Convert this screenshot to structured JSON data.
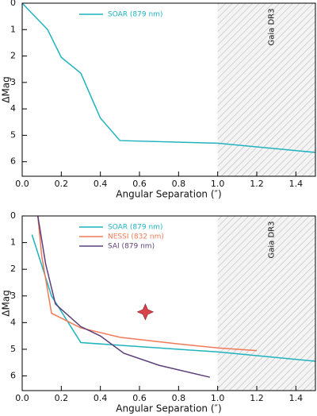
{
  "chart_data": [
    {
      "type": "line",
      "ylabel": "ΔMag",
      "xlabel": "Angular Separation (″)",
      "xlim": [
        0,
        1.5
      ],
      "ylim": [
        0,
        6.55
      ],
      "y_inverted": true,
      "xticks": [
        {
          "value": 0,
          "label": "0.0"
        },
        0.2,
        0.4,
        0.6,
        0.8,
        {
          "value": 1,
          "label": "1.0"
        },
        1.2,
        1.4
      ],
      "yticks": [
        0,
        1,
        2,
        3,
        4,
        5,
        6
      ],
      "legend": "upper center",
      "shade": {
        "x": [
          1.0,
          1.5
        ],
        "label": "Gaia DR3"
      },
      "series": [
        {
          "name": "SOAR (879 nm)",
          "color": "#1fb3bf",
          "x": [
            0,
            0.13,
            0.2,
            0.3,
            0.4,
            0.5,
            1.0,
            1.5
          ],
          "values": [
            0,
            1.0,
            2.05,
            2.65,
            4.35,
            5.2,
            5.3,
            5.65
          ]
        }
      ]
    },
    {
      "type": "line",
      "ylabel": "ΔMag",
      "xlabel": "Angular Separation (″)",
      "xlim": [
        0,
        1.5
      ],
      "ylim": [
        0,
        6.55
      ],
      "y_inverted": true,
      "xticks": [
        {
          "value": 0,
          "label": "0.0"
        },
        0.2,
        0.4,
        0.6,
        0.8,
        {
          "value": 1,
          "label": "1.0"
        },
        1.2,
        1.4
      ],
      "yticks": [
        0,
        1,
        2,
        3,
        4,
        5,
        6
      ],
      "legend": "upper center",
      "shade": {
        "x": [
          1.0,
          1.5
        ],
        "label": "Gaia DR3"
      },
      "series": [
        {
          "name": "SOAR (879 nm)",
          "color": "#1fb3bf",
          "x": [
            0.05,
            0.15,
            0.3,
            1.0,
            1.5
          ],
          "values": [
            0.7,
            3.0,
            4.75,
            5.1,
            5.45
          ]
        },
        {
          "name": "NESSI (832 nm)",
          "color": "#f07a58",
          "x": [
            0.08,
            0.1,
            0.15,
            0.3,
            0.5,
            0.8,
            1.0,
            1.2
          ],
          "values": [
            0,
            1.5,
            3.65,
            4.2,
            4.55,
            4.8,
            4.95,
            5.05
          ]
        },
        {
          "name": "SAI (879 nm)",
          "color": "#5b3f7a",
          "x": [
            0.08,
            0.12,
            0.17,
            0.2,
            0.3,
            0.4,
            0.52,
            0.7,
            0.96
          ],
          "values": [
            0,
            1.8,
            3.3,
            3.5,
            4.15,
            4.5,
            5.15,
            5.6,
            6.05
          ]
        }
      ],
      "marker": {
        "x": 0.63,
        "y": 3.6,
        "color": "#d9434a"
      }
    }
  ]
}
